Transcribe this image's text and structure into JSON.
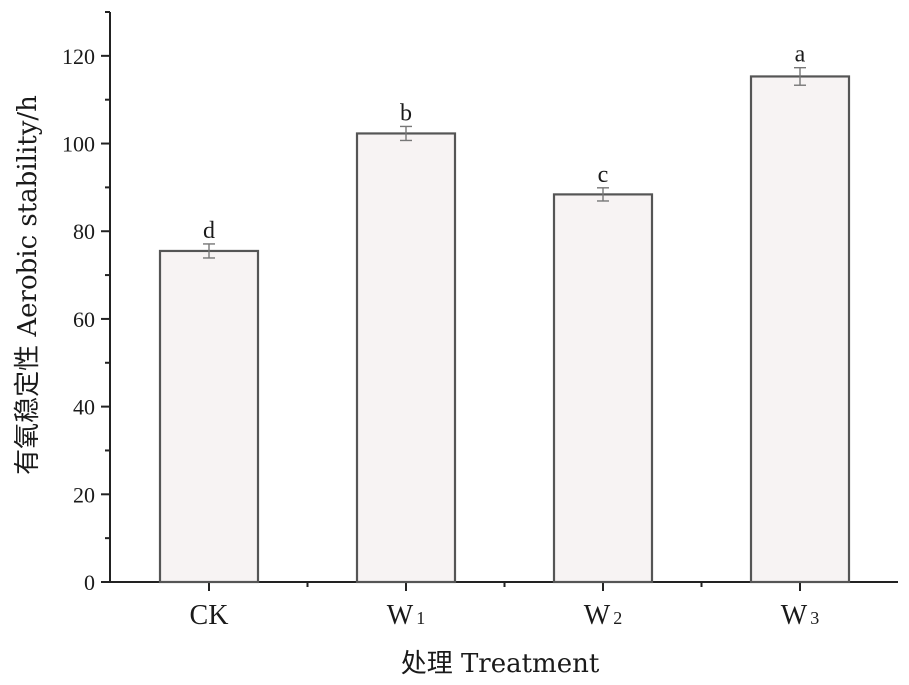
{
  "chart_data": {
    "type": "bar",
    "categories": [
      "CK",
      "W1",
      "W2",
      "W3"
    ],
    "category_labels": [
      {
        "main": "CK",
        "sub": ""
      },
      {
        "main": "W",
        "sub": "1"
      },
      {
        "main": "W",
        "sub": "2"
      },
      {
        "main": "W",
        "sub": "3"
      }
    ],
    "values": [
      75.5,
      102.3,
      88.4,
      115.3
    ],
    "errors": [
      1.6,
      1.6,
      1.5,
      2.0
    ],
    "significance": [
      "d",
      "b",
      "c",
      "a"
    ],
    "xlabel": "处理 Treatment",
    "ylabel": "有氧稳定性 Aerobic stability/h",
    "ylim": [
      0,
      130
    ],
    "yticks": [
      0,
      20,
      40,
      60,
      80,
      100,
      120
    ],
    "grid": false,
    "colors": {
      "bar_fill": "#f7f3f3",
      "bar_stroke": "#555555",
      "axis": "#222222"
    }
  }
}
